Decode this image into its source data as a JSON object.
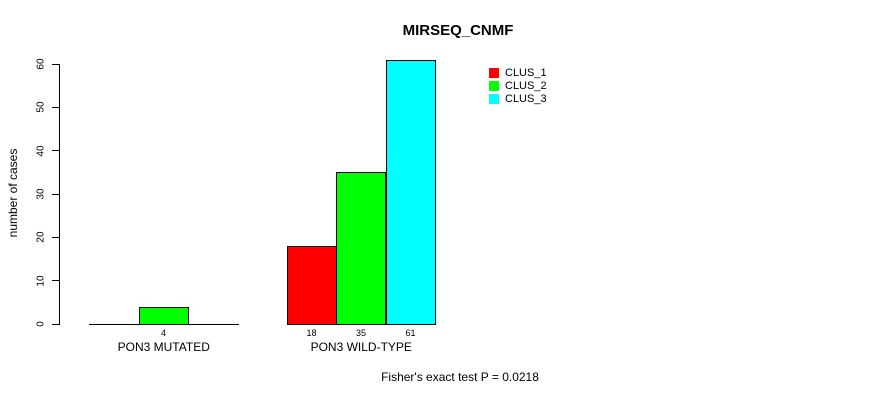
{
  "chart_data": {
    "type": "bar",
    "title": "MIRSEQ_CNMF",
    "ylabel": "number of cases",
    "xlabel": "",
    "categories": [
      "PON3 MUTATED",
      "PON3 WILD-TYPE"
    ],
    "series": [
      {
        "name": "CLUS_1",
        "color": "#ff0000",
        "values": [
          0,
          18
        ]
      },
      {
        "name": "CLUS_2",
        "color": "#00ff00",
        "values": [
          4,
          35
        ]
      },
      {
        "name": "CLUS_3",
        "color": "#00ffff",
        "values": [
          0,
          61
        ]
      }
    ],
    "yticks": [
      0,
      10,
      20,
      30,
      40,
      50,
      60
    ],
    "ylim": [
      0,
      61
    ],
    "grid": false,
    "legend_position": "top-right",
    "bar_value_labels_shown": true,
    "annotation": "Fisher's exact test P = 0.0218"
  }
}
